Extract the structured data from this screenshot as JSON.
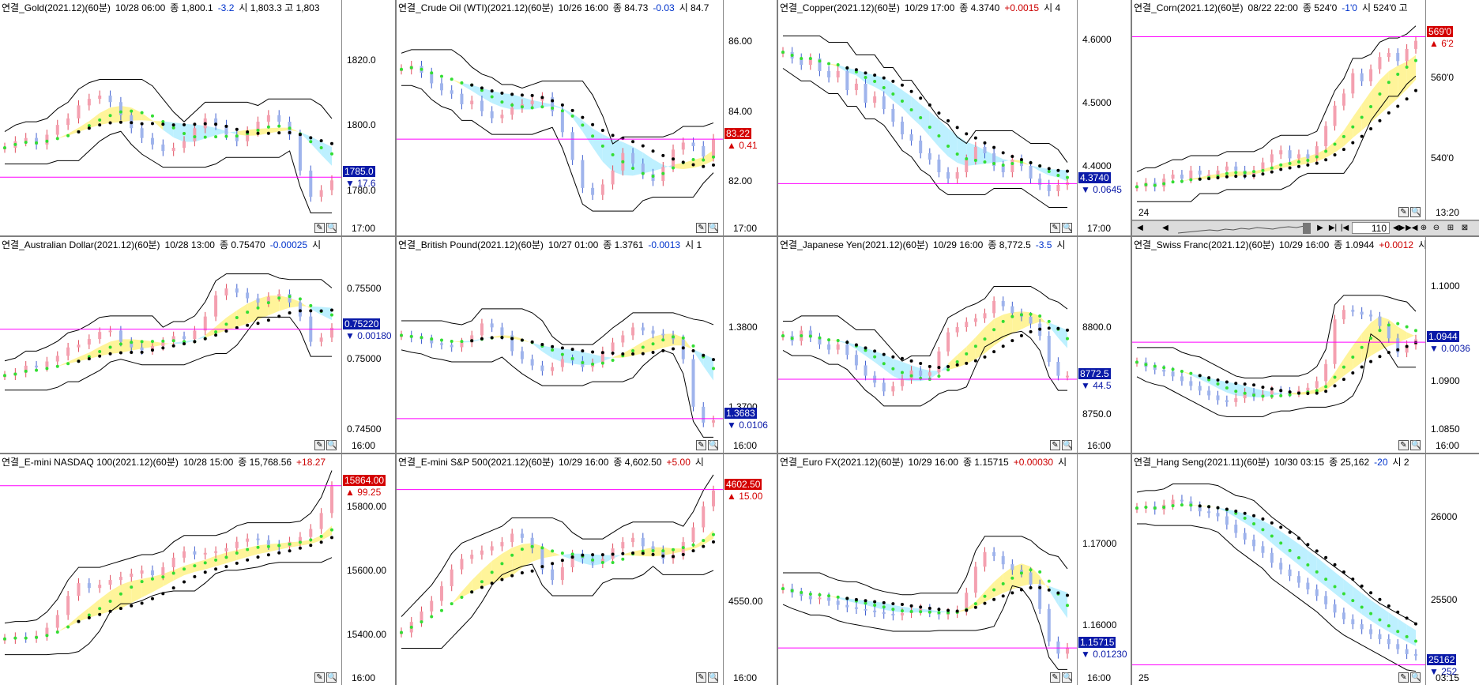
{
  "chart_data": [
    {
      "type": "line",
      "title": "연결_Gold(2021.12)(60분)",
      "date": "10/28 06:00",
      "close_label": "종 1,800.1",
      "change": "-3.2",
      "extra": "시 1,803.3 고 1,803",
      "yticks": [
        "1820.0",
        "1800.0",
        "1780.0"
      ],
      "ylim": [
        1770,
        1832
      ],
      "time": "17:00",
      "current": "1785.0",
      "current_change": "17.6",
      "dir": "dn",
      "hline": 1784,
      "series": [
        {
          "values": [
            1793,
            1795,
            1796,
            1794,
            1797,
            1800,
            1802,
            1806,
            1808,
            1809,
            1807,
            1803,
            1799,
            1796,
            1794,
            1792,
            1793,
            1795,
            1799,
            1802,
            1800,
            1797,
            1795,
            1798,
            1801,
            1803,
            1801,
            1797,
            1786,
            1778,
            1780,
            1783
          ]
        }
      ]
    },
    {
      "type": "line",
      "title": "연결_Crude Oil (WTI)(2021.12)(60분)",
      "date": "10/26 16:00",
      "close_label": "종 84.73",
      "change": "-0.03",
      "extra": "시 84.7",
      "yticks": [
        "86.00",
        "84.00",
        "82.00"
      ],
      "ylim": [
        80.8,
        86.6
      ],
      "time": "17:00",
      "current": "83.22",
      "current_change": "0.41",
      "dir": "up",
      "hline": 83.2,
      "series": [
        {
          "values": [
            85.2,
            85.3,
            85.1,
            84.8,
            84.6,
            84.5,
            84.2,
            84.3,
            84.0,
            83.8,
            83.9,
            84.1,
            84.2,
            84.3,
            84.4,
            84.0,
            83.4,
            82.6,
            81.8,
            81.6,
            81.9,
            82.3,
            82.8,
            82.5,
            82.2,
            82.0,
            82.4,
            82.9,
            83.1,
            83.0,
            82.7,
            83.2
          ]
        }
      ]
    },
    {
      "type": "line",
      "title": "연결_Copper(2021.12)(60분)",
      "date": "10/29 17:00",
      "close_label": "종 4.3740",
      "change": "+0.0015",
      "extra": "시 4",
      "yticks": [
        "4.6000",
        "4.5000",
        "4.4000"
      ],
      "ylim": [
        4.31,
        4.63
      ],
      "time": "17:00",
      "current": "4.3740",
      "current_change": "0.0645",
      "dir": "dn",
      "hline": 4.372,
      "series": [
        {
          "values": [
            4.58,
            4.57,
            4.56,
            4.57,
            4.55,
            4.54,
            4.55,
            4.52,
            4.53,
            4.5,
            4.51,
            4.49,
            4.47,
            4.45,
            4.44,
            4.42,
            4.41,
            4.39,
            4.38,
            4.39,
            4.41,
            4.43,
            4.42,
            4.4,
            4.39,
            4.41,
            4.4,
            4.38,
            4.37,
            4.36,
            4.37,
            4.374
          ]
        }
      ]
    },
    {
      "type": "line",
      "title": "연결_Corn(2021.12)(60분)",
      "date": "08/22 22:00",
      "close_label": "종 524'0",
      "change": "-1'0",
      "extra": "시 524'0 고",
      "yticks": [
        "560'0",
        "540'0"
      ],
      "ylim": [
        528,
        574
      ],
      "time": "13:20",
      "xlabel": "24",
      "current": "569'0",
      "current_change": "6'2",
      "dir": "up",
      "hline": 570,
      "series": [
        {
          "values": [
            533,
            534,
            533,
            535,
            536,
            535,
            537,
            536,
            536,
            537,
            538,
            537,
            536,
            537,
            539,
            541,
            542,
            540,
            541,
            540,
            543,
            548,
            553,
            556,
            561,
            559,
            562,
            565,
            566,
            564,
            567,
            569
          ]
        }
      ]
    },
    {
      "type": "line",
      "title": "연결_Australian Dollar(2021.12)(60분)",
      "date": "10/28 13:00",
      "close_label": "종 0.75470",
      "change": "-0.00025",
      "extra": "시",
      "yticks": [
        "0.75500",
        "0.75000",
        "0.74500"
      ],
      "ylim": [
        0.7442,
        0.7572
      ],
      "time": "16:00",
      "current": "0.75220",
      "current_change": "0.00180",
      "dir": "dn",
      "hline": 0.7521,
      "series": [
        {
          "values": [
            0.7488,
            0.749,
            0.7495,
            0.7494,
            0.7498,
            0.7502,
            0.7508,
            0.751,
            0.7514,
            0.7519,
            0.752,
            0.7512,
            0.7508,
            0.7506,
            0.7509,
            0.7512,
            0.7516,
            0.7514,
            0.752,
            0.753,
            0.7545,
            0.755,
            0.7547,
            0.7543,
            0.754,
            0.7544,
            0.7546,
            0.754,
            0.753,
            0.7512,
            0.7515,
            0.7522
          ]
        }
      ]
    },
    {
      "type": "line",
      "title": "연결_British Pound(2021.12)(60분)",
      "date": "10/27 01:00",
      "close_label": "종 1.3761",
      "change": "-0.0013",
      "extra": "시 1",
      "yticks": [
        "1.3800",
        "1.3700"
      ],
      "ylim": [
        1.3658,
        1.3888
      ],
      "time": "16:00",
      "current": "1.3683",
      "current_change": "0.0106",
      "dir": "dn",
      "hline": 1.3685,
      "series": [
        {
          "values": [
            1.379,
            1.3787,
            1.3785,
            1.378,
            1.3778,
            1.3775,
            1.3781,
            1.379,
            1.3805,
            1.38,
            1.379,
            1.377,
            1.376,
            1.3752,
            1.3745,
            1.375,
            1.376,
            1.3758,
            1.375,
            1.3755,
            1.377,
            1.3781,
            1.379,
            1.38,
            1.3796,
            1.3792,
            1.379,
            1.3785,
            1.376,
            1.37,
            1.368,
            1.3683
          ]
        }
      ]
    },
    {
      "type": "line",
      "title": "연결_Japanese Yen(2021.12)(60분)",
      "date": "10/29 16:00",
      "close_label": "종 8,772.5",
      "change": "-3.5",
      "extra": "시",
      "yticks": [
        "8800.0",
        "8750.0"
      ],
      "ylim": [
        8735,
        8840
      ],
      "time": "16:00",
      "current": "8772.5",
      "current_change": "44.5",
      "dir": "dn",
      "hline": 8770,
      "series": [
        {
          "values": [
            8795,
            8792,
            8798,
            8794,
            8790,
            8787,
            8790,
            8784,
            8778,
            8772,
            8768,
            8763,
            8766,
            8770,
            8775,
            8772,
            8774,
            8786,
            8797,
            8800,
            8803,
            8805,
            8808,
            8815,
            8812,
            8808,
            8806,
            8802,
            8795,
            8780,
            8772,
            8772
          ]
        }
      ]
    },
    {
      "type": "line",
      "title": "연결_Swiss Franc(2021.12)(60분)",
      "date": "10/29 16:00",
      "close_label": "종 1.0944",
      "change": "+0.0012",
      "extra": "시 1",
      "yticks": [
        "1.1000",
        "1.0900",
        "1.0850"
      ],
      "ylim": [
        1.0838,
        1.103
      ],
      "time": "16:00",
      "current": "1.0944",
      "current_change": "0.0036",
      "dir": "dn",
      "hline": 1.0941,
      "series": [
        {
          "values": [
            1.092,
            1.0915,
            1.0912,
            1.091,
            1.0905,
            1.09,
            1.0895,
            1.089,
            1.0885,
            1.088,
            1.0878,
            1.0882,
            1.0888,
            1.0884,
            1.0886,
            1.089,
            1.0889,
            1.0888,
            1.089,
            1.0893,
            1.09,
            1.0918,
            1.0965,
            1.0975,
            1.0973,
            1.097,
            1.0968,
            1.0958,
            1.0945,
            1.093,
            1.0938,
            1.0944
          ]
        }
      ]
    },
    {
      "type": "line",
      "title": "연결_E-mini NASDAQ 100(2021.12)(60분)",
      "date": "10/28 15:00",
      "close_label": "종 15,768.56",
      "change": "+18.27",
      "extra": "",
      "yticks": [
        "15800.00",
        "15600.00",
        "15400.00"
      ],
      "ylim": [
        15280,
        15900
      ],
      "time": "16:00",
      "current": "15864.00",
      "current_change": "99.25",
      "dir": "up",
      "hline": 15866,
      "series": [
        {
          "values": [
            15385,
            15390,
            15388,
            15395,
            15420,
            15460,
            15520,
            15560,
            15545,
            15555,
            15570,
            15580,
            15590,
            15600,
            15585,
            15610,
            15640,
            15660,
            15650,
            15655,
            15660,
            15670,
            15690,
            15700,
            15695,
            15680,
            15675,
            15690,
            15705,
            15730,
            15780,
            15864
          ]
        }
      ]
    },
    {
      "type": "line",
      "title": "연결_E-mini S&P 500(2021.12)(60분)",
      "date": "10/29 16:00",
      "close_label": "종 4,602.50",
      "change": "+5.00",
      "extra": "시",
      "yticks": [
        "4550.00"
      ],
      "ylim": [
        4516,
        4610
      ],
      "time": "16:00",
      "current": "4602.50",
      "current_change": "15.00",
      "dir": "up",
      "hline": 4603,
      "series": [
        {
          "values": [
            4535,
            4540,
            4545,
            4550,
            4557,
            4565,
            4570,
            4572,
            4574,
            4576,
            4578,
            4582,
            4580,
            4575,
            4565,
            4560,
            4566,
            4572,
            4570,
            4568,
            4570,
            4575,
            4578,
            4580,
            4576,
            4574,
            4570,
            4572,
            4578,
            4585,
            4595,
            4602.5
          ]
        }
      ]
    },
    {
      "type": "line",
      "title": "연결_Euro FX(2021.12)(60분)",
      "date": "10/29 16:00",
      "close_label": "종 1.15715",
      "change": "+0.00030",
      "extra": "시",
      "yticks": [
        "1.17000",
        "1.16000"
      ],
      "ylim": [
        1.1542,
        1.1785
      ],
      "time": "16:00",
      "current": "1.15715",
      "current_change": "0.01230",
      "dir": "dn",
      "hline": 1.1572,
      "series": [
        {
          "values": [
            1.1645,
            1.164,
            1.1636,
            1.1632,
            1.1634,
            1.163,
            1.1625,
            1.1622,
            1.162,
            1.1618,
            1.1616,
            1.1614,
            1.1612,
            1.1615,
            1.1618,
            1.162,
            1.1616,
            1.1613,
            1.1615,
            1.1618,
            1.164,
            1.1672,
            1.169,
            1.1685,
            1.1675,
            1.1668,
            1.1665,
            1.165,
            1.162,
            1.158,
            1.1565,
            1.1572
          ]
        }
      ]
    },
    {
      "type": "line",
      "title": "연결_Hang Seng(2021.11)(60분)",
      "date": "10/30 03:15",
      "close_label": "종 25,162",
      "change": "-20",
      "extra": "시 2",
      "yticks": [
        "26000",
        "25500"
      ],
      "ylim": [
        25060,
        26250
      ],
      "time": "03:15",
      "xlabel": "25",
      "current": "25162",
      "current_change": "252",
      "dir": "dn",
      "hline": 25105,
      "series": [
        {
          "values": [
            26050,
            26060,
            26040,
            26070,
            26100,
            26090,
            26060,
            26030,
            26020,
            26000,
            25950,
            25900,
            25860,
            25820,
            25780,
            25720,
            25680,
            25640,
            25600,
            25560,
            25520,
            25470,
            25420,
            25380,
            25350,
            25320,
            25290,
            25260,
            25230,
            25200,
            25170,
            25162
          ]
        }
      ]
    }
  ],
  "toolbar": {
    "zoom_value": "110"
  },
  "icons": {
    "pencil": "pencil-icon",
    "magnifier": "magnifier-icon"
  },
  "colors": {
    "up": "#d40000",
    "down": "#0a1aa8",
    "hline": "#ff00ff",
    "cloud_up": "#fff49a",
    "cloud_down": "#bdf0ff",
    "lead": "#33dd33",
    "lag": "#000000"
  }
}
